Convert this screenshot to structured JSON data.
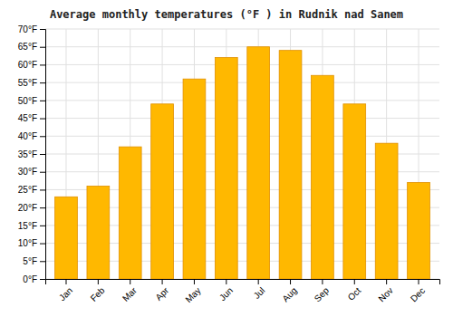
{
  "chart_data": {
    "type": "bar",
    "title": "Average monthly temperatures (°F ) in Rudnik nad Sanem",
    "categories": [
      "Jan",
      "Feb",
      "Mar",
      "Apr",
      "May",
      "Jun",
      "Jul",
      "Aug",
      "Sep",
      "Oct",
      "Nov",
      "Dec"
    ],
    "values": [
      23,
      26,
      37,
      49,
      56,
      62,
      65,
      64,
      57,
      49,
      38,
      27
    ],
    "color": "#FFB800",
    "ylim": [
      0,
      70
    ],
    "yticks": [
      {
        "value": 0,
        "label": "0°F"
      },
      {
        "value": 5,
        "label": "5°F"
      },
      {
        "value": 10,
        "label": "10°F"
      },
      {
        "value": 15,
        "label": "15°F"
      },
      {
        "value": 20,
        "label": "20°F"
      },
      {
        "value": 25,
        "label": "25°F"
      },
      {
        "value": 30,
        "label": "30°F"
      },
      {
        "value": 35,
        "label": "35°F"
      },
      {
        "value": 40,
        "label": "40°F"
      },
      {
        "value": 45,
        "label": "45°F"
      },
      {
        "value": 50,
        "label": "50°F"
      },
      {
        "value": 55,
        "label": "55°F"
      },
      {
        "value": 60,
        "label": "60°F"
      },
      {
        "value": 65,
        "label": "65°F"
      },
      {
        "value": 70,
        "label": "70°F"
      }
    ],
    "grid": true
  }
}
